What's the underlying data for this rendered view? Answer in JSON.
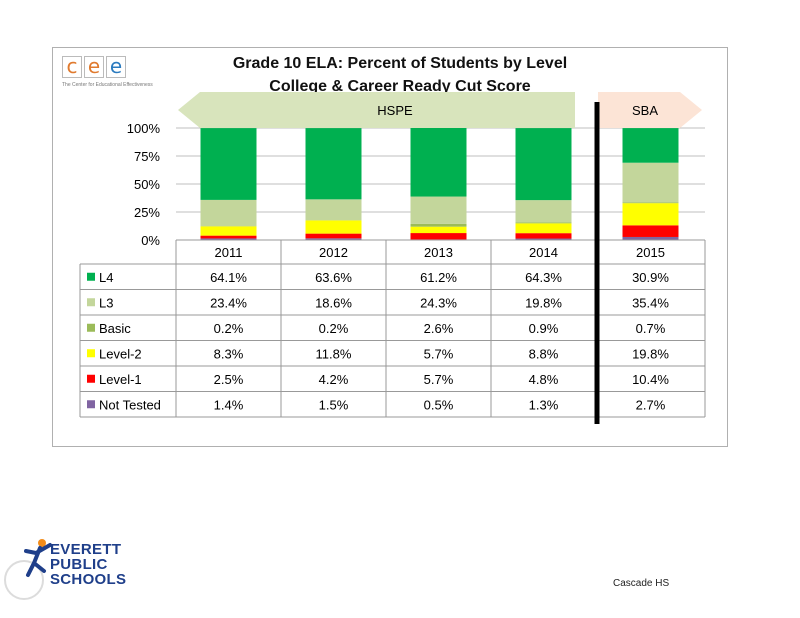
{
  "title_line1": "Grade 10 ELA: Percent of Students by Level",
  "title_line2": "College & Career Ready Cut Score",
  "logo": {
    "letters": [
      "c",
      "e",
      "e"
    ],
    "tagline": "The Center for Educational Effectiveness"
  },
  "district_logo": {
    "lines": [
      "EVERETT",
      "PUBLIC",
      "SCHOOLS"
    ]
  },
  "school": "Cascade HS",
  "banners": {
    "hspe": "HSPE",
    "sba": "SBA"
  },
  "colors": {
    "L4": "#00b050",
    "L3": "#c3d69b",
    "Basic": "#9bbb59",
    "Level-2": "#ffff00",
    "Level-1": "#ff0000",
    "Not Tested": "#8064a2",
    "hspe_arrow": "#d8e4bc",
    "sba_arrow": "#fce4d6"
  },
  "chart_data": {
    "type": "bar",
    "stacked": true,
    "categories": [
      "2011",
      "2012",
      "2013",
      "2014",
      "2015"
    ],
    "yticks": [
      "100%",
      "75%",
      "50%",
      "25%",
      "0%"
    ],
    "ylim": [
      0,
      100
    ],
    "grid": true,
    "legend": "data-table",
    "series": [
      {
        "name": "L4",
        "values": [
          64.1,
          63.6,
          61.2,
          64.3,
          30.9
        ],
        "labels": [
          "64.1%",
          "63.6%",
          "61.2%",
          "64.3%",
          "30.9%"
        ]
      },
      {
        "name": "L3",
        "values": [
          23.4,
          18.6,
          24.3,
          19.8,
          35.4
        ],
        "labels": [
          "23.4%",
          "18.6%",
          "24.3%",
          "19.8%",
          "35.4%"
        ]
      },
      {
        "name": "Basic",
        "values": [
          0.2,
          0.2,
          2.6,
          0.9,
          0.7
        ],
        "labels": [
          "0.2%",
          "0.2%",
          "2.6%",
          "0.9%",
          "0.7%"
        ]
      },
      {
        "name": "Level-2",
        "values": [
          8.3,
          11.8,
          5.7,
          8.8,
          19.8
        ],
        "labels": [
          "8.3%",
          "11.8%",
          "5.7%",
          "8.8%",
          "19.8%"
        ]
      },
      {
        "name": "Level-1",
        "values": [
          2.5,
          4.2,
          5.7,
          4.8,
          10.4
        ],
        "labels": [
          "2.5%",
          "4.2%",
          "5.7%",
          "4.8%",
          "10.4%"
        ]
      },
      {
        "name": "Not Tested",
        "values": [
          1.4,
          1.5,
          0.5,
          1.3,
          2.7
        ],
        "labels": [
          "1.4%",
          "1.5%",
          "0.5%",
          "1.3%",
          "2.7%"
        ]
      }
    ]
  }
}
